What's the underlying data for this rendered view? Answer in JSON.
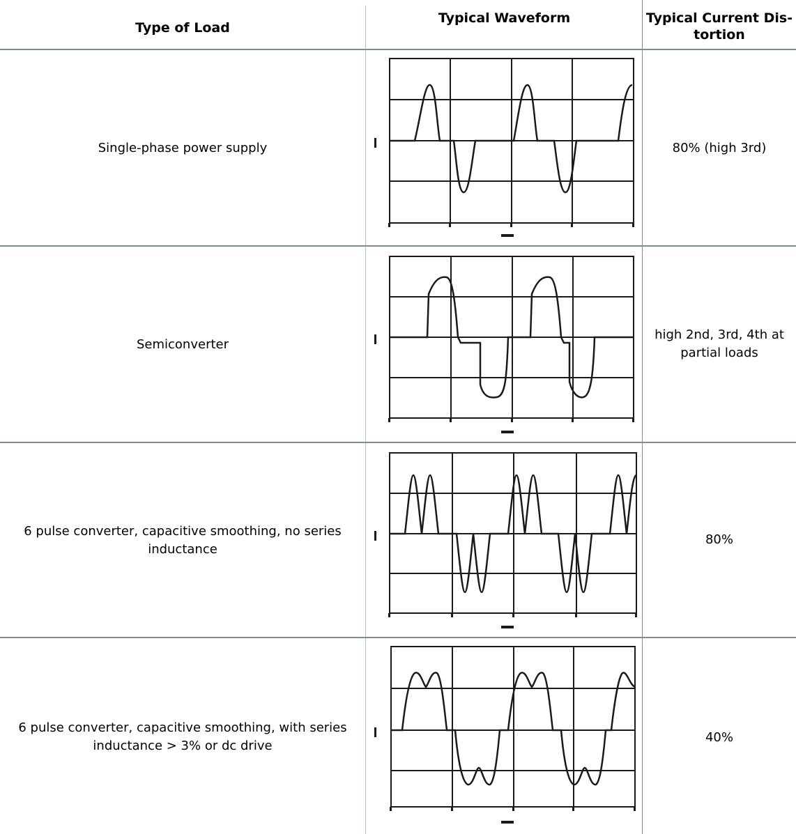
{
  "table": {
    "headers": {
      "type_of_load": "Type of Load",
      "typical_waveform": "Typical Waveform",
      "typical_current_distortion": "Typical Current Distortion"
    },
    "rows": [
      {
        "load": "Single-phase power supply",
        "distortion": "80% (high 3rd)",
        "waveform_icon": "single-phase-waveform"
      },
      {
        "load": "Semiconverter",
        "distortion": "high 2nd, 3rd, 4th at partial loads",
        "waveform_icon": "semiconverter-waveform"
      },
      {
        "load": "6 pulse converter, capacitive smoothing, no series inductance",
        "distortion": "80%",
        "waveform_icon": "six-pulse-no-inductance-waveform"
      },
      {
        "load": "6 pulse converter, capacitive smoothing, with series inductance > 3% or dc drive",
        "distortion": "40%",
        "waveform_icon": "six-pulse-with-inductance-waveform"
      }
    ]
  },
  "colors": {
    "grid_line": "#7d8c94",
    "wave_ink": "#1a1a1a"
  }
}
